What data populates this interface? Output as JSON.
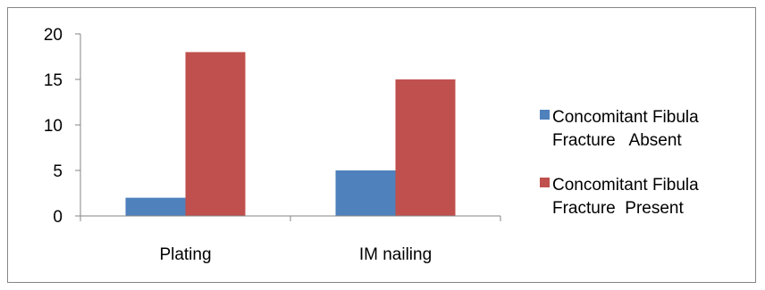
{
  "chart_data": {
    "type": "bar",
    "categories": [
      "Plating",
      "IM nailing"
    ],
    "series": [
      {
        "name": "Concomitant Fibula Fracture   Absent",
        "legend_lines": [
          "Concomitant Fibula",
          "Fracture   Absent"
        ],
        "color": "#4F81BD",
        "values": [
          2,
          5
        ]
      },
      {
        "name": "Concomitant Fibula Fracture  Present",
        "legend_lines": [
          "Concomitant Fibula",
          "Fracture  Present"
        ],
        "color": "#C0504D",
        "values": [
          18,
          15
        ]
      }
    ],
    "y_ticks": [
      "0",
      "5",
      "10",
      "15",
      "20"
    ],
    "ylim": [
      0,
      20
    ],
    "grid": false,
    "legend_position": "right"
  }
}
